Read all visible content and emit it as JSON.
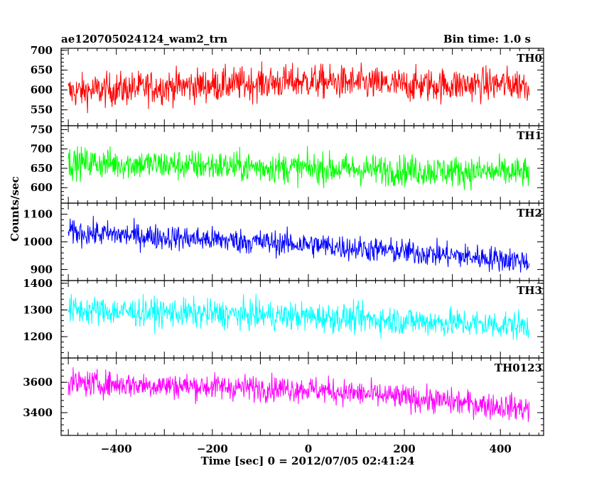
{
  "header": {
    "title": "ae120705024124_wam2_trn",
    "bin_time": "Bin time: 1.0 s"
  },
  "chart_data": {
    "type": "line",
    "xlabel": "Time [sec] 0 = 2012/07/05 02:41:24",
    "ylabel": "Counts/sec",
    "xlim": [
      -515,
      490
    ],
    "x_ticks": [
      -400,
      -200,
      0,
      200,
      400
    ],
    "x_range": [
      -500,
      460
    ],
    "bin_time_s": 1.0,
    "grid": false,
    "panels": [
      {
        "name": "TH0",
        "color": "#ff0000",
        "ylim": [
          510,
          705
        ],
        "y_ticks": [
          550,
          600,
          650,
          700
        ],
        "trend": [
          [
            -500,
            595
          ],
          [
            -300,
            608
          ],
          [
            0,
            622
          ],
          [
            200,
            612
          ],
          [
            460,
            615
          ]
        ],
        "noise": 30
      },
      {
        "name": "TH1",
        "color": "#00ff00",
        "ylim": [
          560,
          760
        ],
        "y_ticks": [
          600,
          650,
          700,
          750
        ],
        "trend": [
          [
            -500,
            665
          ],
          [
            0,
            650
          ],
          [
            460,
            638
          ]
        ],
        "noise": 28
      },
      {
        "name": "TH2",
        "color": "#0000ff",
        "ylim": [
          860,
          1140
        ],
        "y_ticks": [
          900,
          1000,
          1100
        ],
        "trend": [
          [
            -500,
            1035
          ],
          [
            0,
            990
          ],
          [
            460,
            930
          ]
        ],
        "noise": 32
      },
      {
        "name": "TH3",
        "color": "#00ffff",
        "ylim": [
          1120,
          1410
        ],
        "y_ticks": [
          1200,
          1300,
          1400
        ],
        "trend": [
          [
            -500,
            1300
          ],
          [
            0,
            1275
          ],
          [
            460,
            1240
          ]
        ],
        "noise": 38
      },
      {
        "name": "TH0123",
        "color": "#ff00ff",
        "ylim": [
          3250,
          3760
        ],
        "y_ticks": [
          3400,
          3600
        ],
        "trend": [
          [
            -500,
            3595
          ],
          [
            0,
            3555
          ],
          [
            460,
            3425
          ]
        ],
        "noise": 60
      }
    ]
  }
}
